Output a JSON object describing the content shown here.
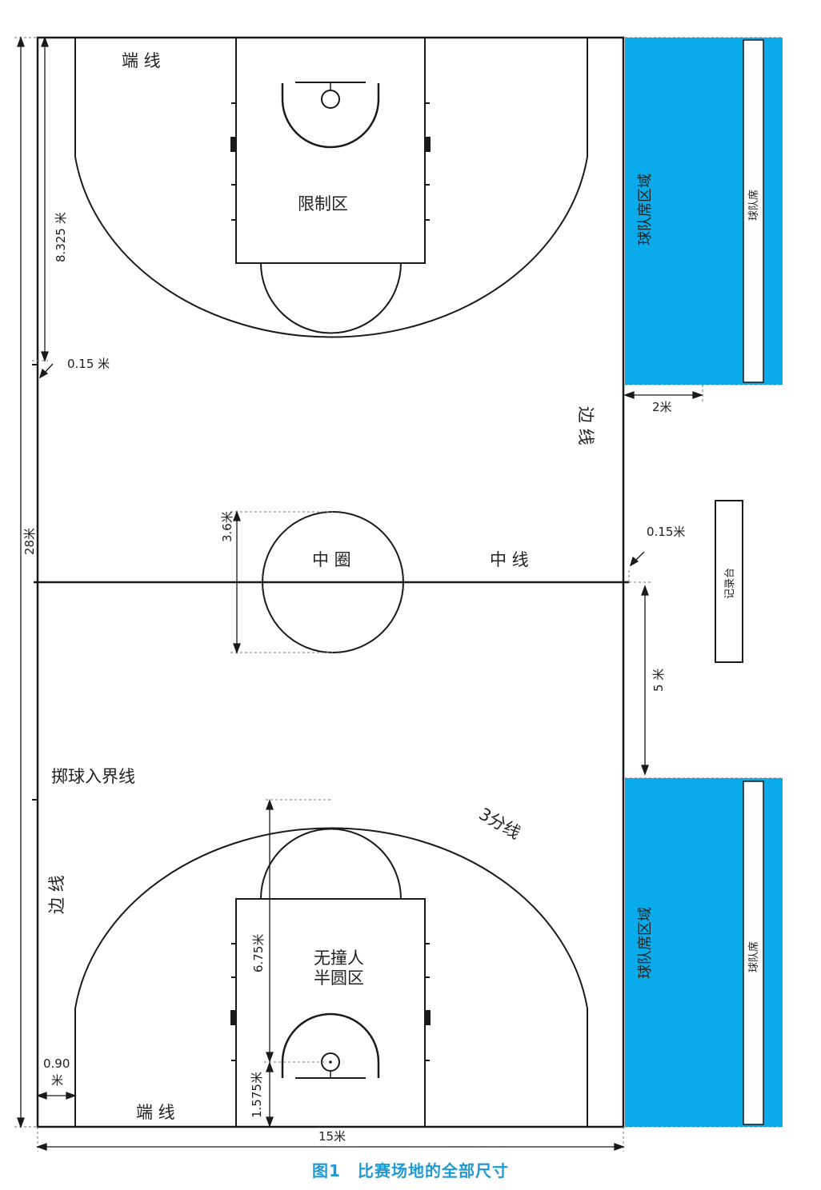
{
  "colors": {
    "team_area": "#0aabea",
    "caption": "#1f9ad6",
    "lines": "#1a1a1a"
  },
  "labels": {
    "end_line_top": "端 线",
    "end_line_bottom": "端 线",
    "restricted_area": "限制区",
    "no_charge_line1": "无撞人",
    "no_charge_line2": "半圆区",
    "center_circle": "中 圈",
    "center_line": "中 线",
    "side_line_right": "边 线",
    "side_line_left": "边 线",
    "throw_in_line": "掷球入界线",
    "three_point_line": "3分线",
    "team_bench_area_top": "球队席区域",
    "team_bench_area_bottom": "球队席区域",
    "team_bench_top": "球队席",
    "team_bench_bottom": "球队席",
    "scorer_table": "记录台"
  },
  "dimensions": {
    "length": "28米",
    "width": "15米",
    "three_point_depth": "8.325 米",
    "line_width_left": "0.15 米",
    "line_width_right": "0.15米",
    "bench_depth": "2米",
    "center_circle_diameter": "3.6米",
    "substitution_distance": "5 米",
    "restricted_depth": "6.75米",
    "basket_distance": "1.575米",
    "corner_distance_value": "0.90",
    "corner_distance_unit": "米"
  },
  "caption": "图1　比赛场地的全部尺寸"
}
